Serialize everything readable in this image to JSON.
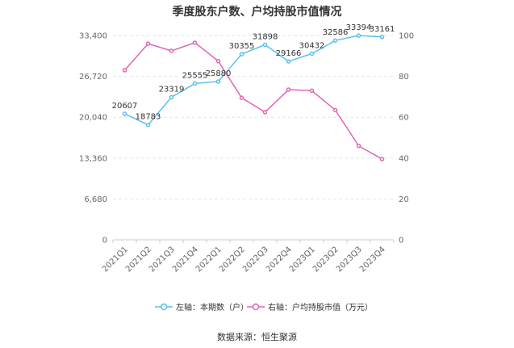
{
  "chart_data": {
    "type": "line",
    "title": "季度股东户数、户均持股市值情况",
    "categories": [
      "2021Q1",
      "2021Q2",
      "2021Q3",
      "2021Q4",
      "2022Q1",
      "2022Q2",
      "2022Q3",
      "2022Q4",
      "2023Q1",
      "2023Q2",
      "2023Q3",
      "2023Q4"
    ],
    "left_axis": {
      "ticks": [
        "0",
        "6,680",
        "13,360",
        "20,040",
        "26,720",
        "33,400"
      ],
      "ylim": [
        0,
        33400
      ]
    },
    "right_axis": {
      "ticks": [
        "0",
        "20",
        "40",
        "60",
        "80",
        "100"
      ],
      "ylim": [
        0,
        100
      ]
    },
    "series": [
      {
        "name": "左轴：本期数（户）",
        "axis": "left",
        "color": "#5bc0eb",
        "values": [
          20607,
          18783,
          23319,
          25555,
          25880,
          30355,
          31898,
          29166,
          30432,
          32586,
          33394,
          33161
        ],
        "labels": [
          "20607",
          "18783",
          "23319",
          "25555",
          "25880",
          "30355",
          "31898",
          "29166",
          "30432",
          "32586",
          "33394",
          "33161"
        ]
      },
      {
        "name": "右轴：户均持股市值（万元）",
        "axis": "right",
        "color": "#e066b3",
        "values": [
          83,
          96,
          92.5,
          96.5,
          87.5,
          69.5,
          62.5,
          73.5,
          73,
          63.5,
          46,
          39.5
        ]
      }
    ],
    "grid": true,
    "legend": "bottom",
    "source": "数据来源：恒生聚源"
  }
}
